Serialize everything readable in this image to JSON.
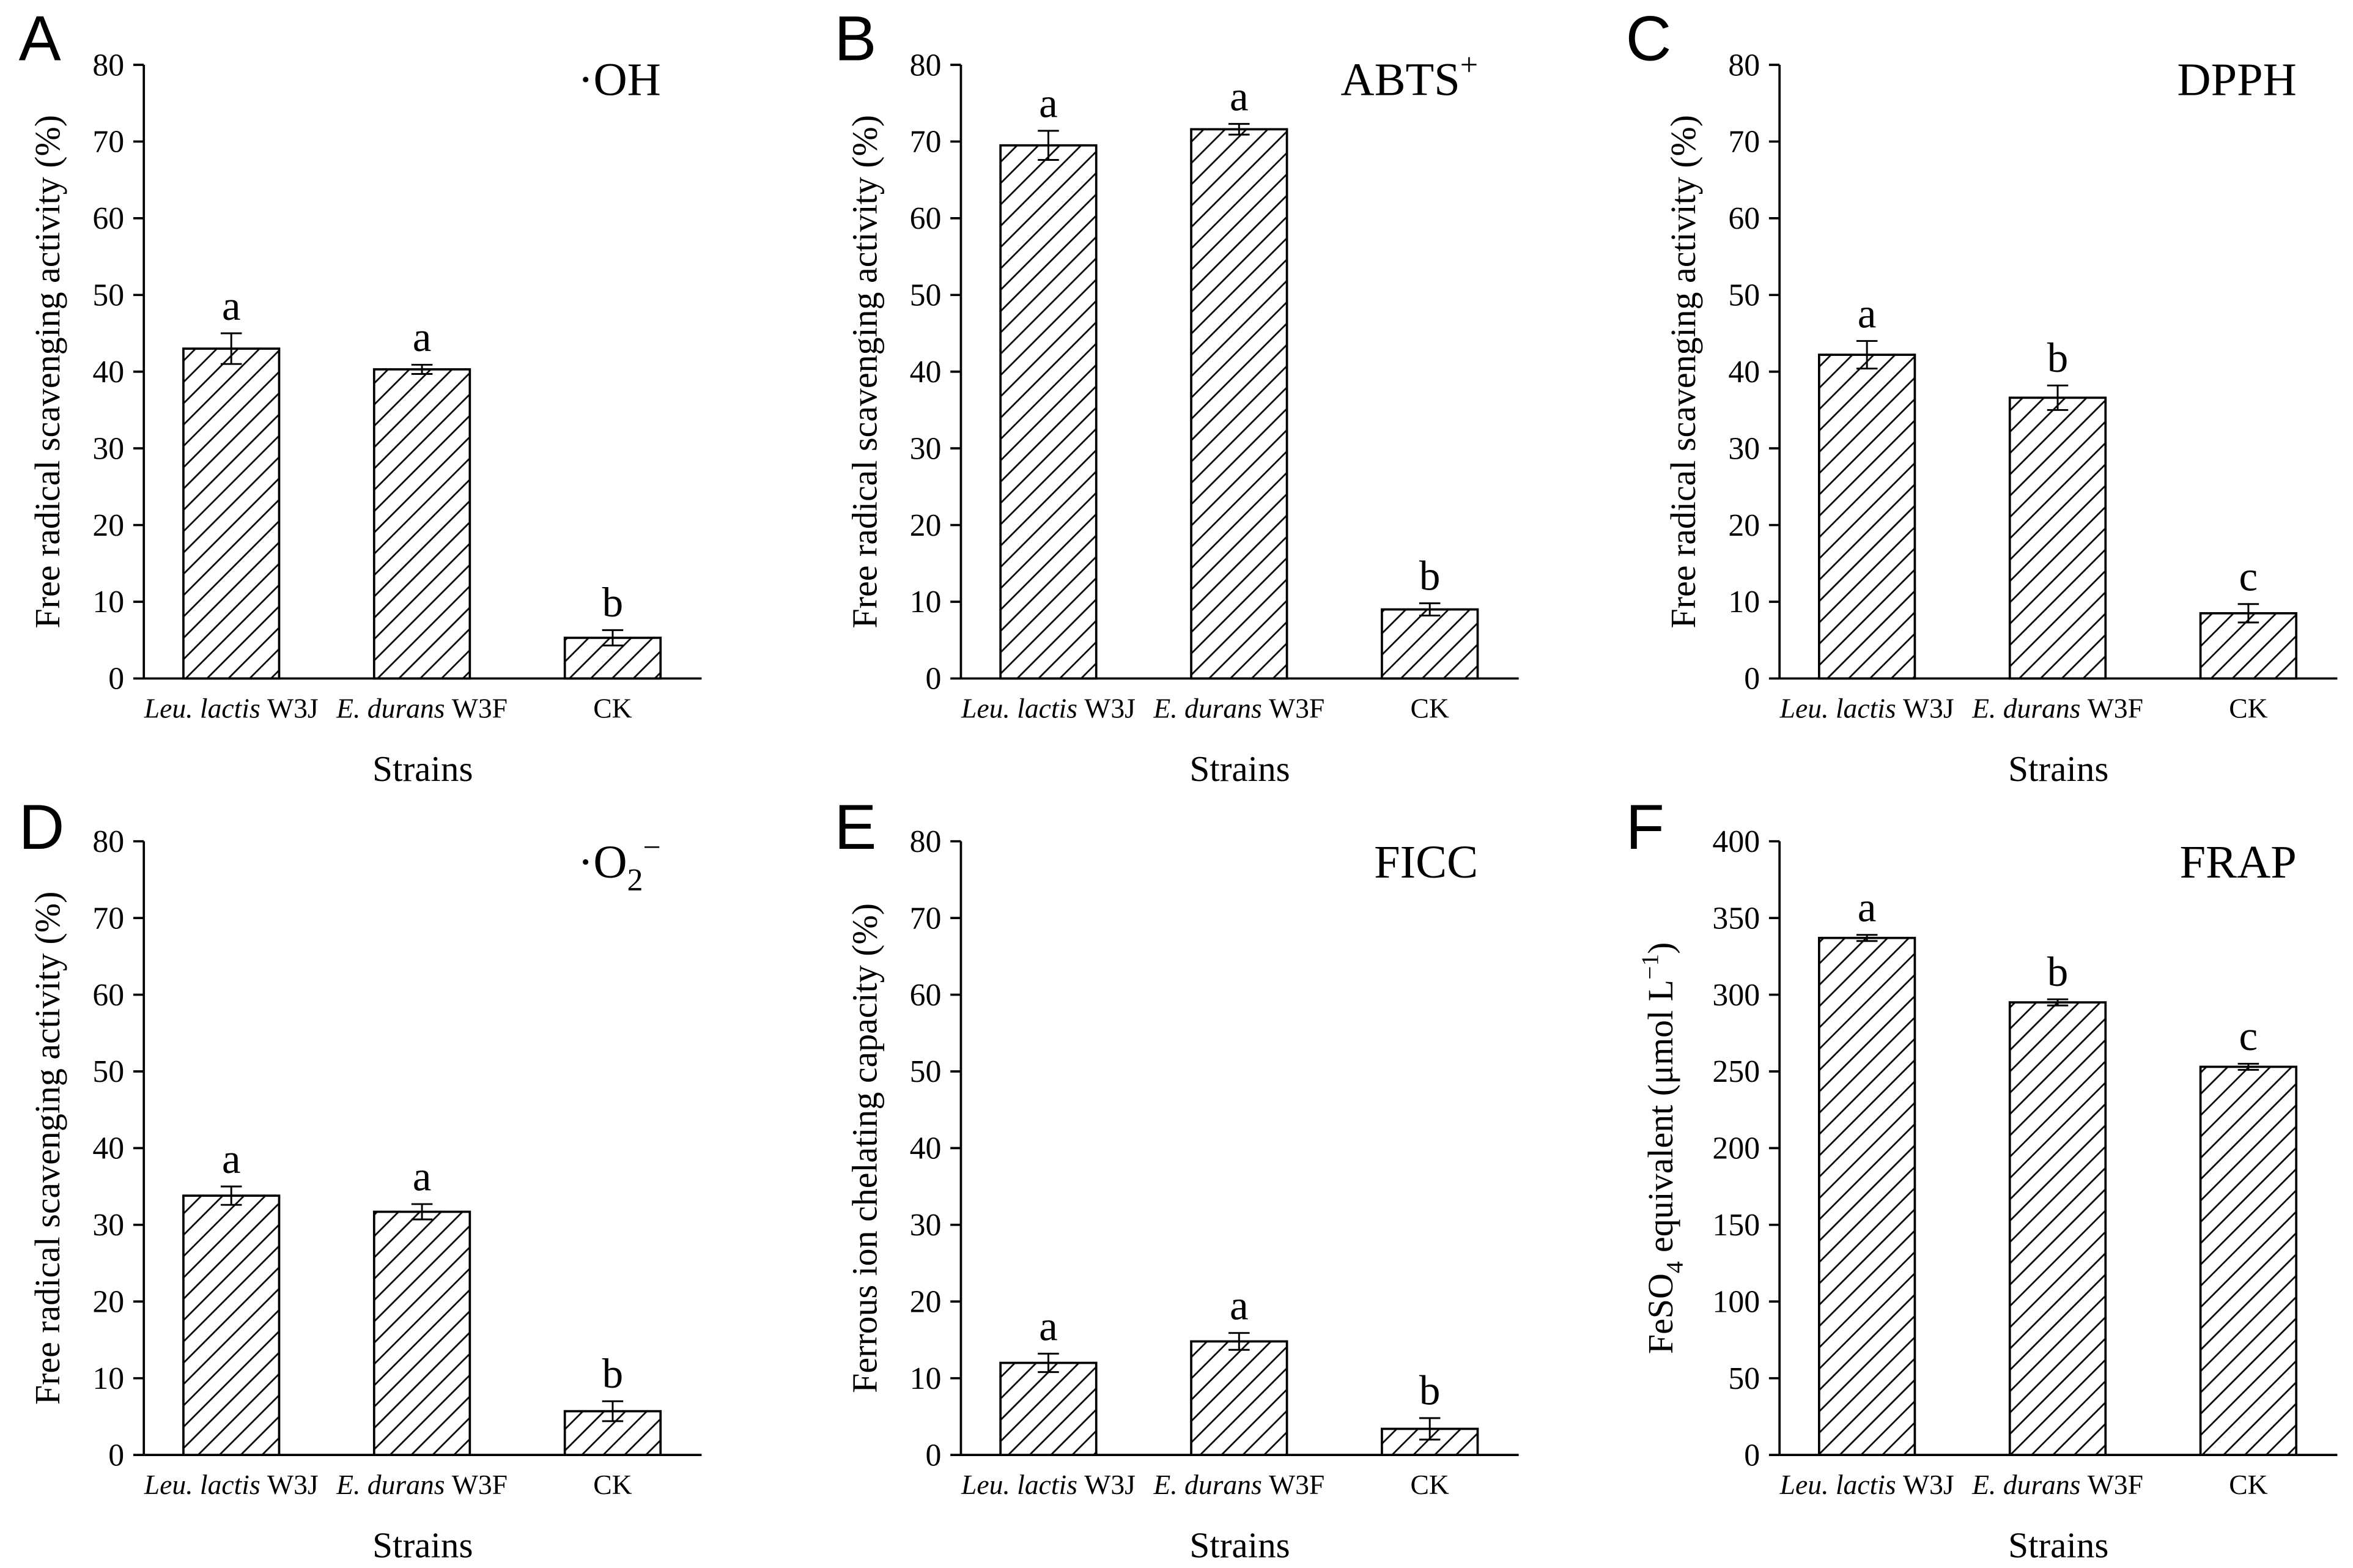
{
  "chart_data": [
    {
      "panel": "A",
      "type": "bar",
      "title": [
        {
          "t": "·OH"
        }
      ],
      "categories": [
        {
          "italic": "Leu. lactis",
          "plain": "W3J"
        },
        {
          "italic": "E. durans",
          "plain": "W3F"
        },
        {
          "plain": "CK"
        }
      ],
      "values": [
        43.0,
        40.3,
        5.3
      ],
      "errors": [
        2.0,
        0.6,
        1.0
      ],
      "letters": [
        "a",
        "a",
        "b"
      ],
      "xlabel": "Strains",
      "ylabel": [
        {
          "t": "Free radical scavenging activity (%)"
        }
      ],
      "ylim": [
        0,
        80
      ],
      "yticks": [
        0,
        10,
        20,
        30,
        40,
        50,
        60,
        70,
        80
      ]
    },
    {
      "panel": "B",
      "type": "bar",
      "title": [
        {
          "t": "ABTS"
        },
        {
          "sup": "+"
        }
      ],
      "categories": [
        {
          "italic": "Leu. lactis",
          "plain": "W3J"
        },
        {
          "italic": "E. durans",
          "plain": "W3F"
        },
        {
          "plain": "CK"
        }
      ],
      "values": [
        69.5,
        71.6,
        9.0
      ],
      "errors": [
        1.9,
        0.7,
        0.8
      ],
      "letters": [
        "a",
        "a",
        "b"
      ],
      "xlabel": "Strains",
      "ylabel": [
        {
          "t": "Free radical scavenging activity (%)"
        }
      ],
      "ylim": [
        0,
        80
      ],
      "yticks": [
        0,
        10,
        20,
        30,
        40,
        50,
        60,
        70,
        80
      ]
    },
    {
      "panel": "C",
      "type": "bar",
      "title": [
        {
          "t": "DPPH"
        }
      ],
      "categories": [
        {
          "italic": "Leu. lactis",
          "plain": "W3J"
        },
        {
          "italic": "E. durans",
          "plain": "W3F"
        },
        {
          "plain": "CK"
        }
      ],
      "values": [
        42.2,
        36.6,
        8.5
      ],
      "errors": [
        1.8,
        1.6,
        1.2
      ],
      "letters": [
        "a",
        "b",
        "c"
      ],
      "xlabel": "Strains",
      "ylabel": [
        {
          "t": "Free radical scavenging activity (%)"
        }
      ],
      "ylim": [
        0,
        80
      ],
      "yticks": [
        0,
        10,
        20,
        30,
        40,
        50,
        60,
        70,
        80
      ]
    },
    {
      "panel": "D",
      "type": "bar",
      "title": [
        {
          "t": "·O"
        },
        {
          "sub": "2"
        },
        {
          "sup": "−"
        }
      ],
      "categories": [
        {
          "italic": "Leu. lactis",
          "plain": "W3J"
        },
        {
          "italic": "E. durans",
          "plain": "W3F"
        },
        {
          "plain": "CK"
        }
      ],
      "values": [
        33.8,
        31.7,
        5.7
      ],
      "errors": [
        1.2,
        1.0,
        1.3
      ],
      "letters": [
        "a",
        "a",
        "b"
      ],
      "xlabel": "Strains",
      "ylabel": [
        {
          "t": "Free radical scavenging activity (%)"
        }
      ],
      "ylim": [
        0,
        80
      ],
      "yticks": [
        0,
        10,
        20,
        30,
        40,
        50,
        60,
        70,
        80
      ]
    },
    {
      "panel": "E",
      "type": "bar",
      "title": [
        {
          "t": "FICC"
        }
      ],
      "categories": [
        {
          "italic": "Leu. lactis",
          "plain": "W3J"
        },
        {
          "italic": "E. durans",
          "plain": "W3F"
        },
        {
          "plain": "CK"
        }
      ],
      "values": [
        12.0,
        14.8,
        3.4
      ],
      "errors": [
        1.2,
        1.1,
        1.4
      ],
      "letters": [
        "a",
        "a",
        "b"
      ],
      "xlabel": "Strains",
      "ylabel": [
        {
          "t": "Ferrous ion chelating capacity (%)"
        }
      ],
      "ylim": [
        0,
        80
      ],
      "yticks": [
        0,
        10,
        20,
        30,
        40,
        50,
        60,
        70,
        80
      ]
    },
    {
      "panel": "F",
      "type": "bar",
      "title": [
        {
          "t": "FRAP"
        }
      ],
      "categories": [
        {
          "italic": "Leu. lactis",
          "plain": "W3J"
        },
        {
          "italic": "E. durans",
          "plain": "W3F"
        },
        {
          "plain": "CK"
        }
      ],
      "values": [
        337,
        295,
        253
      ],
      "errors": [
        2,
        2,
        2
      ],
      "letters": [
        "a",
        "b",
        "c"
      ],
      "xlabel": "Strains",
      "ylabel": [
        {
          "t": "FeSO"
        },
        {
          "sub": "4"
        },
        {
          "t": " equivalent (μmol L"
        },
        {
          "sup": "−1"
        },
        {
          "t": ")"
        }
      ],
      "ylim": [
        0,
        400
      ],
      "yticks": [
        0,
        50,
        100,
        150,
        200,
        250,
        300,
        350,
        400
      ]
    }
  ]
}
